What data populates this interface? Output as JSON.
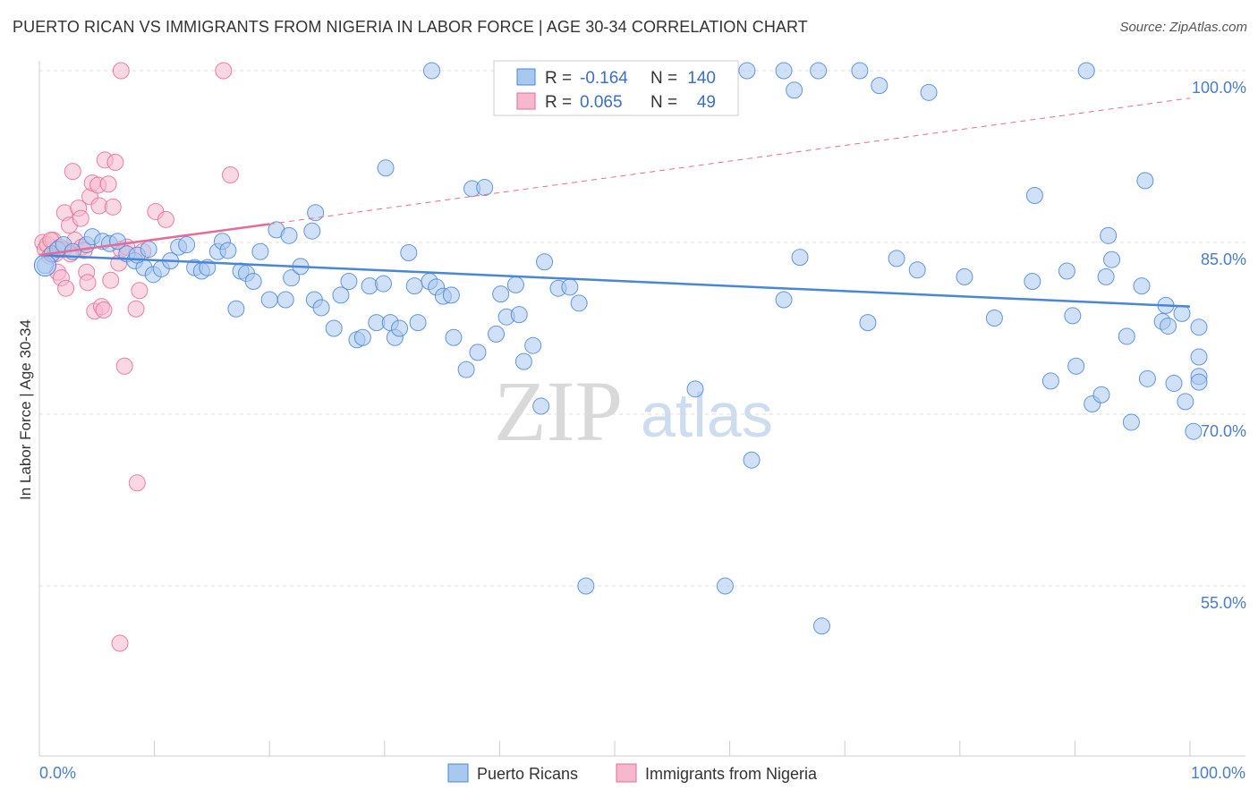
{
  "header": {
    "title": "PUERTO RICAN VS IMMIGRANTS FROM NIGERIA IN LABOR FORCE | AGE 30-34 CORRELATION CHART",
    "source": "Source: ZipAtlas.com"
  },
  "colors": {
    "blue": "#4a86d6",
    "blue_fill": "#a9c8f0",
    "pink": "#e66b96",
    "pink_fill": "#f5b8cc",
    "grid": "#dddddd",
    "tick_text": "#4a7cc7"
  },
  "stats": {
    "r_label": "R =",
    "n_label": "N =",
    "series": [
      {
        "r": "-0.164",
        "n": "140"
      },
      {
        "r": "0.065",
        "n": "49"
      }
    ]
  },
  "watermark": {
    "zip": "ZIP",
    "atlas": "atlas"
  },
  "chart_data": {
    "type": "scatter",
    "title": "PUERTO RICAN VS IMMIGRANTS FROM NIGERIA IN LABOR FORCE | AGE 30-34 CORRELATION CHART",
    "xlabel": "",
    "ylabel": "In Labor Force | Age 30-34",
    "xlim": [
      0,
      100
    ],
    "ylim": [
      40,
      101
    ],
    "x_tick_labels": [
      "0.0%",
      "100.0%"
    ],
    "y_ticks": [
      100,
      85,
      70,
      55
    ],
    "y_tick_labels": [
      "100.0%",
      "85.0%",
      "70.0%",
      "55.0%"
    ],
    "legend": [
      "Puerto Ricans",
      "Immigrants from Nigeria"
    ],
    "legend_position": "bottom-center",
    "series": [
      {
        "name": "Puerto Ricans",
        "color": "#4a86d6",
        "trend": {
          "x": [
            0,
            100
          ],
          "y": [
            83.9,
            79.4
          ]
        },
        "points": [
          {
            "x": 0.5,
            "y": 83.0
          },
          {
            "x": 1.1,
            "y": 84.0
          },
          {
            "x": 1.6,
            "y": 84.4
          },
          {
            "x": 2.1,
            "y": 84.8
          },
          {
            "x": 2.9,
            "y": 84.2
          },
          {
            "x": 4.1,
            "y": 84.8
          },
          {
            "x": 4.6,
            "y": 85.5
          },
          {
            "x": 5.5,
            "y": 85.1
          },
          {
            "x": 6.1,
            "y": 84.9
          },
          {
            "x": 6.8,
            "y": 85.1
          },
          {
            "x": 7.6,
            "y": 84.0
          },
          {
            "x": 8.3,
            "y": 83.4
          },
          {
            "x": 9.1,
            "y": 82.8
          },
          {
            "x": 9.9,
            "y": 82.2
          },
          {
            "x": 10.6,
            "y": 82.7
          },
          {
            "x": 11.4,
            "y": 83.4
          },
          {
            "x": 12.1,
            "y": 84.6
          },
          {
            "x": 12.8,
            "y": 84.8
          },
          {
            "x": 13.5,
            "y": 82.8
          },
          {
            "x": 14.1,
            "y": 82.5
          },
          {
            "x": 14.6,
            "y": 82.8
          },
          {
            "x": 15.5,
            "y": 84.2
          },
          {
            "x": 15.9,
            "y": 85.1
          },
          {
            "x": 16.4,
            "y": 84.3
          },
          {
            "x": 17.1,
            "y": 79.2
          },
          {
            "x": 17.5,
            "y": 82.5
          },
          {
            "x": 18.0,
            "y": 82.3
          },
          {
            "x": 18.6,
            "y": 81.6
          },
          {
            "x": 19.2,
            "y": 84.2
          },
          {
            "x": 20.0,
            "y": 80.0
          },
          {
            "x": 21.4,
            "y": 80.0
          },
          {
            "x": 21.9,
            "y": 81.9
          },
          {
            "x": 22.7,
            "y": 82.9
          },
          {
            "x": 23.9,
            "y": 80.0
          },
          {
            "x": 24.5,
            "y": 79.3
          },
          {
            "x": 25.6,
            "y": 77.5
          },
          {
            "x": 26.2,
            "y": 80.4
          },
          {
            "x": 26.9,
            "y": 81.6
          },
          {
            "x": 27.6,
            "y": 76.5
          },
          {
            "x": 28.1,
            "y": 76.7
          },
          {
            "x": 28.7,
            "y": 81.2
          },
          {
            "x": 29.3,
            "y": 78.0
          },
          {
            "x": 29.9,
            "y": 81.4
          },
          {
            "x": 30.5,
            "y": 78.0
          },
          {
            "x": 30.9,
            "y": 76.7
          },
          {
            "x": 31.3,
            "y": 77.5
          },
          {
            "x": 32.1,
            "y": 84.1
          },
          {
            "x": 32.6,
            "y": 81.2
          },
          {
            "x": 32.9,
            "y": 78.0
          },
          {
            "x": 33.9,
            "y": 81.6
          },
          {
            "x": 34.5,
            "y": 81.1
          },
          {
            "x": 35.1,
            "y": 80.3
          },
          {
            "x": 35.8,
            "y": 80.4
          },
          {
            "x": 36.0,
            "y": 76.7
          },
          {
            "x": 37.1,
            "y": 73.9
          },
          {
            "x": 37.6,
            "y": 89.7
          },
          {
            "x": 38.7,
            "y": 89.8
          },
          {
            "x": 38.1,
            "y": 75.4
          },
          {
            "x": 39.7,
            "y": 77.0
          },
          {
            "x": 40.1,
            "y": 80.5
          },
          {
            "x": 40.6,
            "y": 78.5
          },
          {
            "x": 41.4,
            "y": 81.3
          },
          {
            "x": 41.7,
            "y": 78.7
          },
          {
            "x": 42.1,
            "y": 74.6
          },
          {
            "x": 42.9,
            "y": 76.0
          },
          {
            "x": 43.6,
            "y": 70.7
          },
          {
            "x": 43.9,
            "y": 83.3
          },
          {
            "x": 45.1,
            "y": 81.0
          },
          {
            "x": 46.1,
            "y": 81.1
          },
          {
            "x": 46.9,
            "y": 79.7
          },
          {
            "x": 47.5,
            "y": 55.0
          },
          {
            "x": 34.1,
            "y": 100.0
          },
          {
            "x": 45.7,
            "y": 100.0
          },
          {
            "x": 47.1,
            "y": 100.0
          },
          {
            "x": 55.5,
            "y": 100.0
          },
          {
            "x": 56.4,
            "y": 100.0
          },
          {
            "x": 61.5,
            "y": 100.0
          },
          {
            "x": 64.7,
            "y": 100.0
          },
          {
            "x": 67.7,
            "y": 100.0
          },
          {
            "x": 71.3,
            "y": 100.0
          },
          {
            "x": 91.0,
            "y": 100.0
          },
          {
            "x": 65.6,
            "y": 98.3
          },
          {
            "x": 73.0,
            "y": 98.7
          },
          {
            "x": 77.3,
            "y": 98.1
          },
          {
            "x": 30.1,
            "y": 91.5
          },
          {
            "x": 24.0,
            "y": 87.6
          },
          {
            "x": 20.6,
            "y": 86.1
          },
          {
            "x": 21.7,
            "y": 85.6
          },
          {
            "x": 23.7,
            "y": 86.0
          },
          {
            "x": 8.5,
            "y": 83.9
          },
          {
            "x": 9.5,
            "y": 84.4
          },
          {
            "x": 57.0,
            "y": 72.2
          },
          {
            "x": 59.6,
            "y": 55.0
          },
          {
            "x": 61.9,
            "y": 66.0
          },
          {
            "x": 64.7,
            "y": 80.0
          },
          {
            "x": 66.1,
            "y": 83.7
          },
          {
            "x": 68.0,
            "y": 51.5
          },
          {
            "x": 72.0,
            "y": 78.0
          },
          {
            "x": 74.5,
            "y": 83.6
          },
          {
            "x": 76.3,
            "y": 82.6
          },
          {
            "x": 80.4,
            "y": 82.0
          },
          {
            "x": 83.0,
            "y": 78.4
          },
          {
            "x": 86.3,
            "y": 81.6
          },
          {
            "x": 86.5,
            "y": 89.1
          },
          {
            "x": 87.9,
            "y": 72.9
          },
          {
            "x": 89.3,
            "y": 82.5
          },
          {
            "x": 90.1,
            "y": 74.2
          },
          {
            "x": 89.8,
            "y": 78.6
          },
          {
            "x": 91.5,
            "y": 70.9
          },
          {
            "x": 92.3,
            "y": 71.7
          },
          {
            "x": 92.7,
            "y": 82.0
          },
          {
            "x": 92.9,
            "y": 85.6
          },
          {
            "x": 93.2,
            "y": 83.5
          },
          {
            "x": 94.5,
            "y": 76.8
          },
          {
            "x": 94.9,
            "y": 69.3
          },
          {
            "x": 95.8,
            "y": 81.2
          },
          {
            "x": 96.3,
            "y": 73.1
          },
          {
            "x": 97.6,
            "y": 78.1
          },
          {
            "x": 97.9,
            "y": 79.5
          },
          {
            "x": 98.1,
            "y": 77.7
          },
          {
            "x": 98.6,
            "y": 72.7
          },
          {
            "x": 99.3,
            "y": 78.8
          },
          {
            "x": 99.6,
            "y": 71.1
          },
          {
            "x": 100.3,
            "y": 68.5
          },
          {
            "x": 100.9,
            "y": 73.3
          },
          {
            "x": 101.2,
            "y": 75.0
          },
          {
            "x": 101.6,
            "y": 72.8
          },
          {
            "x": 102.2,
            "y": 77.6
          },
          {
            "x": 96.1,
            "y": 90.4
          }
        ]
      },
      {
        "name": "Immigrants from Nigeria",
        "color": "#e66b96",
        "trend": {
          "x": [
            0,
            20
          ],
          "y": [
            83.9,
            86.6
          ]
        },
        "trend_extension": {
          "x": [
            20,
            100
          ],
          "y": [
            86.6,
            97.6
          ]
        },
        "points": [
          {
            "x": 0.3,
            "y": 85.0
          },
          {
            "x": 0.5,
            "y": 84.4
          },
          {
            "x": 0.7,
            "y": 84.8
          },
          {
            "x": 0.9,
            "y": 83.8
          },
          {
            "x": 1.2,
            "y": 85.2
          },
          {
            "x": 1.4,
            "y": 84.0
          },
          {
            "x": 1.6,
            "y": 82.4
          },
          {
            "x": 1.9,
            "y": 81.9
          },
          {
            "x": 2.1,
            "y": 84.4
          },
          {
            "x": 2.2,
            "y": 87.6
          },
          {
            "x": 2.3,
            "y": 81.0
          },
          {
            "x": 2.6,
            "y": 86.5
          },
          {
            "x": 2.9,
            "y": 91.2
          },
          {
            "x": 3.1,
            "y": 85.2
          },
          {
            "x": 3.4,
            "y": 88.0
          },
          {
            "x": 3.6,
            "y": 87.1
          },
          {
            "x": 3.7,
            "y": 84.6
          },
          {
            "x": 3.9,
            "y": 84.3
          },
          {
            "x": 4.1,
            "y": 82.4
          },
          {
            "x": 4.2,
            "y": 81.5
          },
          {
            "x": 4.4,
            "y": 89.0
          },
          {
            "x": 4.6,
            "y": 90.2
          },
          {
            "x": 4.8,
            "y": 79.0
          },
          {
            "x": 5.1,
            "y": 90.0
          },
          {
            "x": 5.2,
            "y": 88.2
          },
          {
            "x": 5.4,
            "y": 79.4
          },
          {
            "x": 5.6,
            "y": 79.1
          },
          {
            "x": 5.7,
            "y": 92.2
          },
          {
            "x": 6.0,
            "y": 90.1
          },
          {
            "x": 6.2,
            "y": 81.7
          },
          {
            "x": 6.4,
            "y": 88.1
          },
          {
            "x": 6.6,
            "y": 92.0
          },
          {
            "x": 6.9,
            "y": 83.2
          },
          {
            "x": 7.1,
            "y": 84.4
          },
          {
            "x": 7.1,
            "y": 100.0
          },
          {
            "x": 7.4,
            "y": 74.2
          },
          {
            "x": 7.6,
            "y": 84.6
          },
          {
            "x": 8.4,
            "y": 79.2
          },
          {
            "x": 8.5,
            "y": 64.0
          },
          {
            "x": 8.7,
            "y": 80.8
          },
          {
            "x": 9.0,
            "y": 84.2
          },
          {
            "x": 10.1,
            "y": 87.7
          },
          {
            "x": 11.0,
            "y": 87.0
          },
          {
            "x": 7.0,
            "y": 50.0
          },
          {
            "x": 16.0,
            "y": 100.0
          },
          {
            "x": 16.6,
            "y": 90.9
          },
          {
            "x": 1.0,
            "y": 85.2
          },
          {
            "x": 2.7,
            "y": 84.0
          },
          {
            "x": 1.8,
            "y": 84.6
          }
        ]
      }
    ]
  }
}
